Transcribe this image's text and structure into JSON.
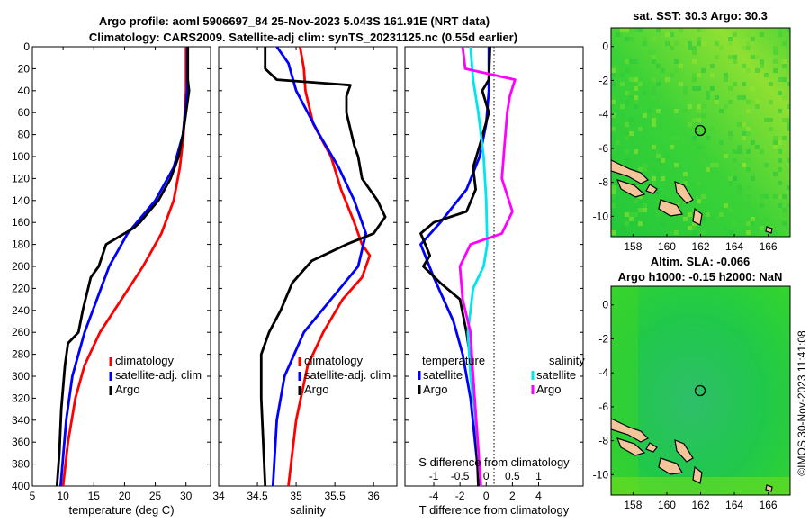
{
  "title_line1": "Argo profile: aoml 5906697_84 25-Nov-2023 5.043S 161.91E (NRT data)",
  "title_line2": "Climatology: CARS2009. Satellite-adj clim: synTS_20231125.nc (0.55d earlier)",
  "watermark": "©IMOS 30-Nov-2023 11:41:08",
  "colors": {
    "climatology": "#ff0000",
    "satellite": "#0000ff",
    "argo": "#000000",
    "sat_salinity": "#00e5ee",
    "argo_salinity": "#ff00ff"
  },
  "chart_data": [
    {
      "type": "line",
      "name": "temperature-profile",
      "xlabel": "temperature (deg C)",
      "ylabel": "",
      "xlim": [
        5,
        34
      ],
      "ylim": [
        0,
        400
      ],
      "xticks": [
        "5",
        "10",
        "15",
        "20",
        "25",
        "30"
      ],
      "yticks": [
        "0",
        "20",
        "40",
        "60",
        "80",
        "100",
        "120",
        "140",
        "160",
        "180",
        "200",
        "220",
        "240",
        "260",
        "280",
        "300",
        "320",
        "340",
        "360",
        "380",
        "400"
      ],
      "legend": [
        "climatology",
        "satellite-adj. clim",
        "Argo"
      ],
      "series": [
        {
          "name": "climatology",
          "points": [
            [
              30.0,
              0
            ],
            [
              30.0,
              40
            ],
            [
              29.6,
              80
            ],
            [
              29.0,
              110
            ],
            [
              28.0,
              140
            ],
            [
              26.0,
              170
            ],
            [
              23.0,
              200
            ],
            [
              19.5,
              230
            ],
            [
              16.0,
              260
            ],
            [
              13.5,
              290
            ],
            [
              12.0,
              320
            ],
            [
              10.8,
              360
            ],
            [
              10.0,
              400
            ]
          ]
        },
        {
          "name": "satellite-adj. clim",
          "points": [
            [
              30.2,
              0
            ],
            [
              30.2,
              40
            ],
            [
              29.5,
              80
            ],
            [
              28.0,
              110
            ],
            [
              25.0,
              140
            ],
            [
              20.5,
              170
            ],
            [
              17.5,
              200
            ],
            [
              15.5,
              230
            ],
            [
              13.5,
              260
            ],
            [
              11.5,
              300
            ],
            [
              10.5,
              340
            ],
            [
              9.6,
              400
            ]
          ]
        },
        {
          "name": "Argo",
          "points": [
            [
              30.3,
              0
            ],
            [
              30.3,
              30
            ],
            [
              30.5,
              40
            ],
            [
              30.0,
              60
            ],
            [
              29.5,
              80
            ],
            [
              28.8,
              100
            ],
            [
              27.5,
              120
            ],
            [
              25.5,
              140
            ],
            [
              22.5,
              160
            ],
            [
              21.5,
              165
            ],
            [
              18.5,
              175
            ],
            [
              17.0,
              180
            ],
            [
              15.8,
              200
            ],
            [
              14.5,
              210
            ],
            [
              13.2,
              240
            ],
            [
              12.5,
              260
            ],
            [
              10.8,
              270
            ],
            [
              10.3,
              290
            ],
            [
              9.7,
              330
            ],
            [
              9.4,
              370
            ],
            [
              9.0,
              400
            ]
          ]
        }
      ]
    },
    {
      "type": "line",
      "name": "salinity-profile",
      "xlabel": "salinity",
      "xlim": [
        34,
        36.3
      ],
      "ylim": [
        0,
        400
      ],
      "xticks": [
        "34",
        "34.5",
        "35",
        "35.5",
        "36"
      ],
      "legend": [
        "climatology",
        "satellite-adj. clim",
        "Argo"
      ],
      "series": [
        {
          "name": "climatology",
          "points": [
            [
              35.05,
              0
            ],
            [
              35.1,
              20
            ],
            [
              35.12,
              40
            ],
            [
              35.22,
              70
            ],
            [
              35.45,
              100
            ],
            [
              35.58,
              130
            ],
            [
              35.75,
              160
            ],
            [
              35.85,
              180
            ],
            [
              35.95,
              190
            ],
            [
              35.85,
              210
            ],
            [
              35.6,
              230
            ],
            [
              35.35,
              260
            ],
            [
              35.15,
              290
            ],
            [
              35.0,
              340
            ],
            [
              34.9,
              400
            ]
          ]
        },
        {
          "name": "satellite-adj. clim",
          "points": [
            [
              34.75,
              0
            ],
            [
              34.9,
              15
            ],
            [
              35.0,
              40
            ],
            [
              35.3,
              80
            ],
            [
              35.55,
              110
            ],
            [
              35.75,
              140
            ],
            [
              35.9,
              170
            ],
            [
              35.8,
              200
            ],
            [
              35.45,
              230
            ],
            [
              35.1,
              260
            ],
            [
              34.85,
              300
            ],
            [
              34.75,
              340
            ],
            [
              34.7,
              400
            ]
          ]
        },
        {
          "name": "Argo",
          "points": [
            [
              34.6,
              0
            ],
            [
              34.6,
              20
            ],
            [
              34.75,
              30
            ],
            [
              35.7,
              35
            ],
            [
              35.65,
              45
            ],
            [
              35.65,
              60
            ],
            [
              35.75,
              90
            ],
            [
              35.8,
              100
            ],
            [
              35.85,
              120
            ],
            [
              36.05,
              140
            ],
            [
              36.15,
              155
            ],
            [
              36.0,
              170
            ],
            [
              35.65,
              180
            ],
            [
              35.2,
              195
            ],
            [
              34.95,
              215
            ],
            [
              34.8,
              240
            ],
            [
              34.65,
              260
            ],
            [
              34.55,
              280
            ],
            [
              34.55,
              320
            ],
            [
              34.6,
              400
            ]
          ]
        }
      ]
    },
    {
      "type": "line",
      "name": "difference-profile",
      "xlabel": "T difference from climatology",
      "xlabel_top": "S difference from climatology",
      "xlim": [
        -6.2,
        7.4
      ],
      "s_xlim": [
        -1.55,
        1.85
      ],
      "ylim": [
        0,
        400
      ],
      "xticks": [
        "-4",
        "-2",
        "0",
        "2",
        "4"
      ],
      "s_xticks": [
        "-1",
        "-0.5",
        "0",
        "0.5",
        "1"
      ],
      "legend_temperature_title": "temperature",
      "legend_salinity_title": "salinity",
      "legend_satellite": "satellite",
      "legend_argo": "Argo",
      "series": [
        {
          "name": "T satellite",
          "axis": "T",
          "points": [
            [
              0.2,
              0
            ],
            [
              0.2,
              40
            ],
            [
              0,
              70
            ],
            [
              -0.5,
              100
            ],
            [
              -1.5,
              130
            ],
            [
              -3.5,
              160
            ],
            [
              -5.0,
              180
            ],
            [
              -4.0,
              210
            ],
            [
              -2.5,
              250
            ],
            [
              -1.8,
              280
            ],
            [
              -1.2,
              320
            ],
            [
              -0.5,
              400
            ]
          ]
        },
        {
          "name": "T Argo",
          "axis": "T",
          "points": [
            [
              0.3,
              0
            ],
            [
              0.2,
              30
            ],
            [
              -0.3,
              40
            ],
            [
              0.2,
              60
            ],
            [
              -0.5,
              90
            ],
            [
              -1.0,
              110
            ],
            [
              -0.8,
              130
            ],
            [
              -1.5,
              150
            ],
            [
              -4.0,
              160
            ],
            [
              -5.0,
              170
            ],
            [
              -4.3,
              190
            ],
            [
              -4.8,
              200
            ],
            [
              -3.5,
              215
            ],
            [
              -2.0,
              230
            ],
            [
              -1.5,
              260
            ],
            [
              -1.0,
              300
            ],
            [
              -0.8,
              340
            ],
            [
              -0.6,
              400
            ]
          ]
        },
        {
          "name": "S satellite",
          "axis": "S",
          "points": [
            [
              -0.3,
              0
            ],
            [
              -0.25,
              30
            ],
            [
              -0.15,
              60
            ],
            [
              -0.05,
              100
            ],
            [
              0,
              140
            ],
            [
              0.02,
              180
            ],
            [
              -0.05,
              200
            ],
            [
              -0.25,
              220
            ],
            [
              -0.35,
              260
            ],
            [
              -0.3,
              300
            ],
            [
              -0.2,
              340
            ],
            [
              -0.1,
              400
            ]
          ]
        },
        {
          "name": "S Argo",
          "axis": "S",
          "points": [
            [
              -0.45,
              0
            ],
            [
              -0.4,
              20
            ],
            [
              0.55,
              30
            ],
            [
              0.45,
              45
            ],
            [
              0.4,
              60
            ],
            [
              0.35,
              90
            ],
            [
              0.3,
              120
            ],
            [
              0.5,
              150
            ],
            [
              0.3,
              170
            ],
            [
              -0.3,
              180
            ],
            [
              -0.5,
              200
            ],
            [
              -0.45,
              230
            ],
            [
              -0.3,
              260
            ],
            [
              -0.25,
              300
            ],
            [
              -0.1,
              400
            ]
          ]
        }
      ]
    }
  ],
  "map_sst": {
    "title": "sat. SST: 30.3 Argo: 30.3",
    "xticks": [
      "158",
      "160",
      "162",
      "164",
      "166"
    ],
    "yticks": [
      "0",
      "-2",
      "-4",
      "-6",
      "-8",
      "-10"
    ]
  },
  "map_sla": {
    "title1": "Altim. SLA: -0.066",
    "title2": "Argo h1000: -0.15 h2000: NaN",
    "xticks": [
      "158",
      "160",
      "162",
      "164",
      "166"
    ],
    "yticks": [
      "0",
      "-2",
      "-4",
      "-6",
      "-8",
      "-10"
    ]
  }
}
